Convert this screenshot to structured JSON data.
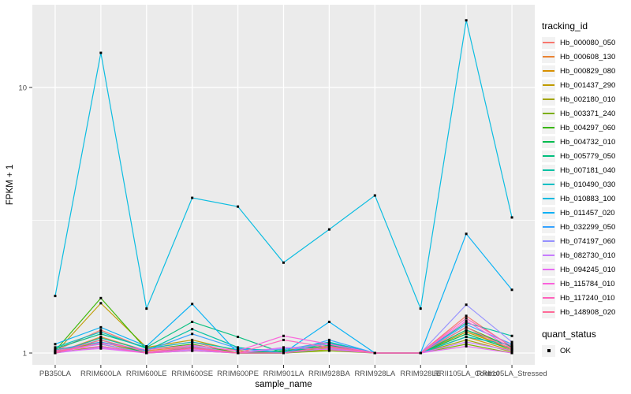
{
  "chart_data": {
    "type": "line",
    "title": "",
    "xlabel": "sample_name",
    "ylabel": "FPKM + 1",
    "y_scale": "log10",
    "y_tick_labels": [
      "1",
      "10"
    ],
    "y_tick_values": [
      1,
      10
    ],
    "y_minor_values": [
      3.1623
    ],
    "ylim": [
      0.92,
      20.5
    ],
    "grid": "on",
    "legend_position": "right",
    "x_categories": [
      "PB350LA",
      "RRIM600LA",
      "RRIM600LE",
      "RRIM600SE",
      "RRIM600PE",
      "RRIM901LA",
      "RRIM928BA",
      "RRIM928LA",
      "RRIM928LE",
      "RRII105LA_Control",
      "RRII105LA_Stressed"
    ],
    "legend": {
      "series_title": "tracking_id",
      "status_title": "quant_status",
      "status_label": "OK"
    },
    "colors": {
      "panel_bg": "#EBEBEB",
      "grid": "#FFFFFF",
      "tick_text": "#4D4D4D",
      "axis_title_text": "#000000",
      "tick_mark": "#333333",
      "marker": "#000000",
      "legend_key_bg": "#F2F2F2"
    },
    "series": [
      {
        "name": "Hb_000080_050",
        "color": "#F8766D",
        "values": [
          1.02,
          1.22,
          1.04,
          1.1,
          1.0,
          1.02,
          1.09,
          1.0,
          1.0,
          1.38,
          1.05
        ]
      },
      {
        "name": "Hb_000608_130",
        "color": "#EA8331",
        "values": [
          1.0,
          1.15,
          1.02,
          1.06,
          1.0,
          1.0,
          1.07,
          1.0,
          1.0,
          1.22,
          1.03
        ]
      },
      {
        "name": "Hb_000829_080",
        "color": "#D89000",
        "values": [
          1.03,
          1.08,
          1.0,
          1.04,
          1.0,
          1.01,
          1.07,
          1.0,
          1.0,
          1.15,
          1.02
        ]
      },
      {
        "name": "Hb_001437_290",
        "color": "#C09B00",
        "values": [
          1.0,
          1.54,
          1.05,
          1.12,
          1.02,
          1.0,
          1.05,
          1.0,
          1.0,
          1.2,
          1.04
        ]
      },
      {
        "name": "Hb_002180_010",
        "color": "#A3A500",
        "values": [
          1.01,
          1.1,
          1.0,
          1.05,
          1.0,
          1.0,
          1.03,
          1.0,
          1.0,
          1.12,
          1.01
        ]
      },
      {
        "name": "Hb_003371_240",
        "color": "#7CAE00",
        "values": [
          1.0,
          1.06,
          1.0,
          1.02,
          1.0,
          1.0,
          1.02,
          1.0,
          1.0,
          1.08,
          1.0
        ]
      },
      {
        "name": "Hb_004297_060",
        "color": "#39B600",
        "values": [
          1.02,
          1.61,
          1.03,
          1.08,
          1.0,
          1.0,
          1.04,
          1.0,
          1.0,
          1.25,
          1.05
        ]
      },
      {
        "name": "Hb_004732_010",
        "color": "#00BB4E",
        "values": [
          1.0,
          1.12,
          1.0,
          1.05,
          1.0,
          1.02,
          1.06,
          1.0,
          1.0,
          1.18,
          1.03
        ]
      },
      {
        "name": "Hb_005779_050",
        "color": "#00BF7D",
        "values": [
          1.04,
          1.18,
          1.05,
          1.31,
          1.15,
          1.0,
          1.07,
          1.0,
          1.0,
          1.22,
          1.06
        ]
      },
      {
        "name": "Hb_007181_040",
        "color": "#00C1A3",
        "values": [
          1.0,
          1.14,
          1.02,
          1.23,
          1.05,
          1.0,
          1.09,
          1.0,
          1.0,
          1.3,
          1.16
        ]
      },
      {
        "name": "Hb_010490_030",
        "color": "#00BFC4",
        "values": [
          1.05,
          1.2,
          1.04,
          1.1,
          1.03,
          1.03,
          1.1,
          1.0,
          1.0,
          1.15,
          1.07
        ]
      },
      {
        "name": "Hb_010883_100",
        "color": "#00BAE0",
        "values": [
          1.64,
          13.5,
          1.47,
          3.84,
          3.56,
          2.19,
          2.92,
          3.92,
          1.47,
          17.9,
          3.24
        ]
      },
      {
        "name": "Hb_011457_020",
        "color": "#00B0F6",
        "values": [
          1.08,
          1.25,
          1.06,
          1.53,
          1.0,
          1.0,
          1.31,
          1.0,
          1.0,
          2.81,
          1.73
        ]
      },
      {
        "name": "Hb_032299_050",
        "color": "#35A2FF",
        "values": [
          1.03,
          1.1,
          1.02,
          1.18,
          1.04,
          1.0,
          1.12,
          1.0,
          1.0,
          1.28,
          1.08
        ]
      },
      {
        "name": "Hb_074197_060",
        "color": "#9590FF",
        "values": [
          1.02,
          1.08,
          1.0,
          1.06,
          1.0,
          1.04,
          1.08,
          1.0,
          1.0,
          1.52,
          1.1
        ]
      },
      {
        "name": "Hb_082730_010",
        "color": "#C77CFF",
        "values": [
          1.0,
          1.05,
          1.0,
          1.03,
          1.0,
          1.0,
          1.04,
          1.0,
          1.0,
          1.1,
          1.02
        ]
      },
      {
        "name": "Hb_094245_010",
        "color": "#E76BF3",
        "values": [
          1.01,
          1.04,
          1.0,
          1.02,
          1.0,
          1.05,
          1.03,
          1.0,
          1.0,
          1.06,
          1.0
        ]
      },
      {
        "name": "Hb_115784_010",
        "color": "#FA62DB",
        "values": [
          1.0,
          1.09,
          1.03,
          1.07,
          1.02,
          1.16,
          1.08,
          1.0,
          1.0,
          1.32,
          1.04
        ]
      },
      {
        "name": "Hb_117240_010",
        "color": "#FF62BC",
        "values": [
          1.02,
          1.06,
          1.0,
          1.04,
          1.0,
          1.12,
          1.05,
          1.0,
          1.0,
          1.35,
          1.06
        ]
      },
      {
        "name": "Hb_148908_020",
        "color": "#FF6A98",
        "values": [
          1.0,
          1.12,
          1.01,
          1.05,
          1.0,
          1.0,
          1.06,
          1.0,
          1.0,
          1.25,
          1.03
        ]
      }
    ]
  }
}
